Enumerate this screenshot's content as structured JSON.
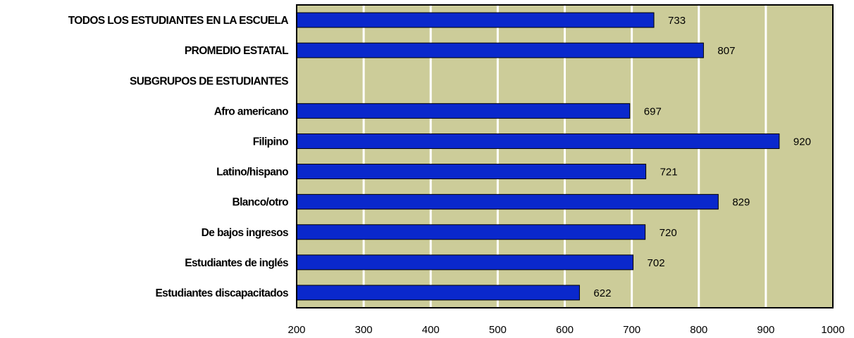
{
  "chart_data": {
    "type": "bar",
    "orientation": "horizontal",
    "categories": [
      "TODOS LOS ESTUDIANTES EN LA ESCUELA",
      "PROMEDIO ESTATAL",
      "SUBGRUPOS DE ESTUDIANTES",
      "Afro americano",
      "Filipino",
      "Latino/hispano",
      "Blanco/otro",
      "De bajos ingresos",
      "Estudiantes de inglés",
      "Estudiantes discapacitados"
    ],
    "values": [
      733,
      807,
      null,
      697,
      920,
      721,
      829,
      720,
      702,
      622
    ],
    "xlim": [
      200,
      1000
    ],
    "xticks": [
      200,
      300,
      400,
      500,
      600,
      700,
      800,
      900,
      1000
    ],
    "grid": true,
    "legend": "none",
    "title": "",
    "xlabel": "",
    "ylabel": ""
  },
  "colors": {
    "plot_background": "#cccc99",
    "bar_fill": "#0a28cc",
    "bar_edge": "#000000",
    "gridline": "#ffffff"
  }
}
